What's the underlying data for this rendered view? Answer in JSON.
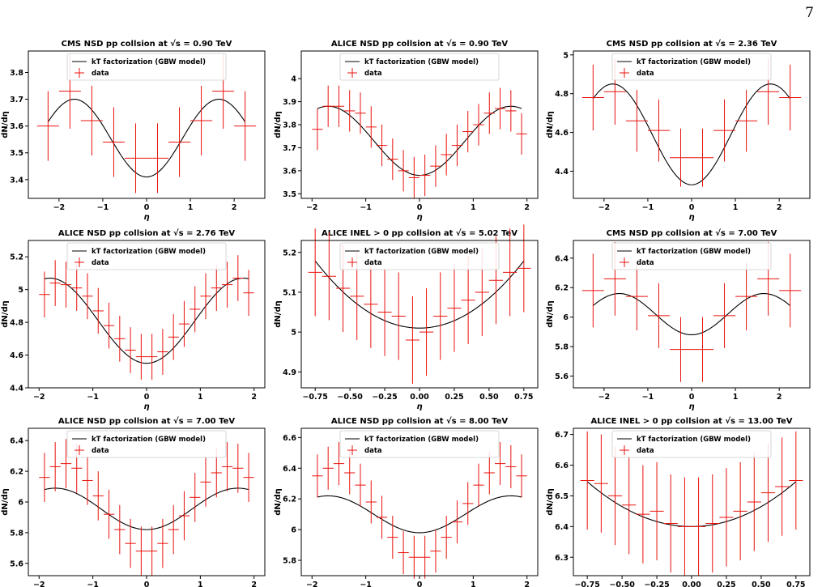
{
  "page_number": "7",
  "chart_data": [
    {
      "type": "line",
      "title": "CMS NSD pp collsion at √s = 0.90 TeV",
      "xlabel": "η",
      "ylabel": "dN/dη",
      "xlim": [
        -2.7,
        2.7
      ],
      "ylim": [
        3.33,
        3.88
      ],
      "xticks": [
        -2,
        -1,
        0,
        1,
        2
      ],
      "yticks": [
        3.4,
        3.5,
        3.6,
        3.7,
        3.8
      ],
      "legend": [
        "kT factorization (GBW model)",
        "data"
      ],
      "legend_position": "upper-center",
      "model": {
        "amp": 0.145,
        "center": 3.555,
        "period": 3.3
      },
      "data": {
        "x": [
          -2.25,
          -1.75,
          -1.25,
          -0.75,
          -0.25,
          0.25,
          0.75,
          1.25,
          1.75,
          2.25
        ],
        "y": [
          3.6,
          3.73,
          3.62,
          3.54,
          3.48,
          3.48,
          3.54,
          3.62,
          3.73,
          3.6
        ],
        "xerr": 0.25,
        "yerr": [
          0.13,
          0.14,
          0.13,
          0.13,
          0.13,
          0.13,
          0.13,
          0.13,
          0.14,
          0.13
        ]
      }
    },
    {
      "type": "line",
      "title": "ALICE NSD pp collsion at √s = 0.90 TeV",
      "xlabel": "η",
      "ylabel": "dN/dη",
      "xlim": [
        -2.2,
        2.2
      ],
      "ylim": [
        3.48,
        4.12
      ],
      "xticks": [
        -2,
        -1,
        0,
        1,
        2
      ],
      "yticks": [
        3.5,
        3.6,
        3.7,
        3.8,
        3.9,
        4.0
      ],
      "legend": [
        "kT factorization (GBW model)",
        "data"
      ],
      "legend_position": "upper-center",
      "model": {
        "amp": 0.15,
        "center": 3.73,
        "period": 3.4
      },
      "data": {
        "x": [
          -1.9,
          -1.7,
          -1.5,
          -1.3,
          -1.1,
          -0.9,
          -0.7,
          -0.5,
          -0.3,
          -0.1,
          0.1,
          0.3,
          0.5,
          0.7,
          0.9,
          1.1,
          1.3,
          1.5,
          1.7,
          1.9
        ],
        "y": [
          3.78,
          3.88,
          3.88,
          3.86,
          3.85,
          3.79,
          3.71,
          3.65,
          3.6,
          3.57,
          3.58,
          3.62,
          3.67,
          3.71,
          3.77,
          3.8,
          3.85,
          3.87,
          3.86,
          3.76
        ],
        "xerr": 0.1,
        "yerr": 0.09
      }
    },
    {
      "type": "line",
      "title": "CMS NSD pp collsion at √s = 2.36 TeV",
      "xlabel": "η",
      "ylabel": "dN/dη",
      "xlim": [
        -2.7,
        2.7
      ],
      "ylim": [
        4.26,
        5.02
      ],
      "xticks": [
        -2,
        -1,
        0,
        1,
        2
      ],
      "yticks": [
        4.4,
        4.6,
        4.8,
        5.0
      ],
      "legend": [
        "kT factorization (GBW model)",
        "data"
      ],
      "legend_position": "upper-center",
      "model": {
        "amp": 0.26,
        "center": 4.59,
        "period": 3.6
      },
      "data": {
        "x": [
          -2.25,
          -1.75,
          -1.25,
          -0.75,
          -0.25,
          0.25,
          0.75,
          1.25,
          1.75,
          2.25
        ],
        "y": [
          4.78,
          4.81,
          4.66,
          4.61,
          4.47,
          4.47,
          4.61,
          4.66,
          4.81,
          4.78
        ],
        "xerr": 0.25,
        "yerr": [
          0.17,
          0.17,
          0.16,
          0.16,
          0.15,
          0.15,
          0.16,
          0.16,
          0.17,
          0.17
        ]
      }
    },
    {
      "type": "line",
      "title": "ALICE NSD pp collsion at √s = 2.76 TeV",
      "xlabel": "η",
      "ylabel": "dN/dη",
      "xlim": [
        -2.2,
        2.2
      ],
      "ylim": [
        4.4,
        5.3
      ],
      "xticks": [
        -2,
        -1,
        0,
        1,
        2
      ],
      "yticks": [
        4.4,
        4.6,
        4.8,
        5.0,
        5.2
      ],
      "legend": [
        "kT factorization (GBW model)",
        "data"
      ],
      "legend_position": "upper-center",
      "model": {
        "amp": 0.26,
        "center": 4.81,
        "period": 3.6
      },
      "data": {
        "x": [
          -1.9,
          -1.7,
          -1.5,
          -1.3,
          -1.1,
          -0.9,
          -0.7,
          -0.5,
          -0.3,
          -0.1,
          0.1,
          0.3,
          0.5,
          0.7,
          0.9,
          1.1,
          1.3,
          1.5,
          1.7,
          1.9
        ],
        "y": [
          4.97,
          5.04,
          5.03,
          5.01,
          4.96,
          4.87,
          4.78,
          4.7,
          4.63,
          4.59,
          4.59,
          4.62,
          4.71,
          4.79,
          4.88,
          4.96,
          5.01,
          5.03,
          5.07,
          4.98
        ],
        "xerr": 0.1,
        "yerr": 0.14
      }
    },
    {
      "type": "line",
      "title": "ALICE INEL > 0 pp collsion at √s = 5.02 TeV",
      "xlabel": "η",
      "ylabel": "dN/dη",
      "xlim": [
        -0.85,
        0.85
      ],
      "ylim": [
        4.86,
        5.23
      ],
      "xticks": [
        -0.75,
        -0.5,
        -0.25,
        0,
        0.25,
        0.5,
        0.75
      ],
      "xtick_labels": [
        "−0.75",
        "−0.50",
        "−0.25",
        "0.00",
        "0.25",
        "0.50",
        "0.75"
      ],
      "yticks": [
        4.9,
        5.0,
        5.1,
        5.2
      ],
      "legend": [
        "kT factorization (GBW model)",
        "data"
      ],
      "legend_position": "upper-center",
      "model": {
        "quad": {
          "a": 0.3,
          "c": 5.01
        }
      },
      "data": {
        "x": [
          -0.75,
          -0.65,
          -0.55,
          -0.45,
          -0.35,
          -0.25,
          -0.15,
          -0.05,
          0.05,
          0.15,
          0.25,
          0.35,
          0.45,
          0.55,
          0.65,
          0.75
        ],
        "y": [
          5.15,
          5.14,
          5.11,
          5.09,
          5.07,
          5.05,
          5.04,
          4.98,
          5.0,
          5.04,
          5.06,
          5.08,
          5.1,
          5.13,
          5.15,
          5.16
        ],
        "xerr": 0.05,
        "yerr": 0.11
      }
    },
    {
      "type": "line",
      "title": "CMS NSD pp collsion at √s = 7.00 TeV",
      "xlabel": "η",
      "ylabel": "dN/dη",
      "xlim": [
        -2.7,
        2.7
      ],
      "ylim": [
        5.52,
        6.52
      ],
      "xticks": [
        -2,
        -1,
        0,
        1,
        2
      ],
      "yticks": [
        5.6,
        5.8,
        6.0,
        6.2,
        6.4
      ],
      "legend": [
        "kT factorization (GBW model)",
        "data"
      ],
      "legend_position": "upper-center",
      "model": {
        "amp": 0.14,
        "center": 6.02,
        "period": 3.3
      },
      "data": {
        "x": [
          -2.25,
          -1.75,
          -1.25,
          -0.75,
          -0.25,
          0.25,
          0.75,
          1.25,
          1.75,
          2.25
        ],
        "y": [
          6.18,
          6.26,
          6.14,
          6.01,
          5.78,
          5.78,
          6.01,
          6.14,
          6.26,
          6.18
        ],
        "xerr": 0.25,
        "yerr": [
          0.25,
          0.25,
          0.23,
          0.22,
          0.22,
          0.22,
          0.22,
          0.23,
          0.25,
          0.25
        ]
      }
    },
    {
      "type": "line",
      "title": "ALICE NSD pp collsion at √s = 7.00 TeV",
      "xlabel": "η",
      "ylabel": "dN/dη",
      "xlim": [
        -2.2,
        2.2
      ],
      "ylim": [
        5.52,
        6.48
      ],
      "xticks": [
        -2,
        -1,
        0,
        1,
        2
      ],
      "yticks": [
        5.6,
        5.8,
        6.0,
        6.2,
        6.4
      ],
      "legend": [
        "kT factorization (GBW model)",
        "data"
      ],
      "legend_position": "upper-center",
      "model": {
        "amp": 0.135,
        "center": 5.955,
        "period": 3.4
      },
      "data": {
        "x": [
          -1.9,
          -1.7,
          -1.5,
          -1.3,
          -1.1,
          -0.9,
          -0.7,
          -0.5,
          -0.3,
          -0.1,
          0.1,
          0.3,
          0.5,
          0.7,
          0.9,
          1.1,
          1.3,
          1.5,
          1.7,
          1.9
        ],
        "y": [
          6.16,
          6.23,
          6.25,
          6.22,
          6.14,
          6.04,
          5.92,
          5.82,
          5.73,
          5.68,
          5.68,
          5.73,
          5.82,
          5.91,
          6.03,
          6.13,
          6.19,
          6.23,
          6.22,
          6.16
        ],
        "xerr": 0.1,
        "yerr": 0.16
      }
    },
    {
      "type": "line",
      "title": "ALICE NSD pp collsion at √s = 8.00 TeV",
      "xlabel": "η",
      "ylabel": "dN/dη",
      "xlim": [
        -2.2,
        2.2
      ],
      "ylim": [
        5.7,
        6.66
      ],
      "xticks": [
        -2,
        -1,
        0,
        1,
        2
      ],
      "yticks": [
        5.8,
        6.0,
        6.2,
        6.4,
        6.6
      ],
      "legend": [
        "kT factorization (GBW model)",
        "data"
      ],
      "legend_position": "upper-center",
      "model": {
        "amp": 0.12,
        "center": 6.1,
        "period": 3.4
      },
      "data": {
        "x": [
          -1.9,
          -1.7,
          -1.5,
          -1.3,
          -1.1,
          -0.9,
          -0.7,
          -0.5,
          -0.3,
          -0.1,
          0.1,
          0.3,
          0.5,
          0.7,
          0.9,
          1.1,
          1.3,
          1.5,
          1.7,
          1.9
        ],
        "y": [
          6.35,
          6.4,
          6.43,
          6.37,
          6.29,
          6.18,
          6.08,
          5.95,
          5.85,
          5.82,
          5.82,
          5.86,
          5.95,
          6.05,
          6.17,
          6.29,
          6.37,
          6.43,
          6.41,
          6.35
        ],
        "xerr": 0.1,
        "yerr": 0.14
      }
    },
    {
      "type": "line",
      "title": "ALICE INEL > 0 pp collsion at √s = 13.00 TeV",
      "xlabel": "η",
      "ylabel": "dN/dη",
      "xlim": [
        -0.85,
        0.85
      ],
      "ylim": [
        6.24,
        6.72
      ],
      "xticks": [
        -0.75,
        -0.5,
        -0.25,
        0,
        0.25,
        0.5,
        0.75
      ],
      "xtick_labels": [
        "−0.75",
        "−0.50",
        "−0.25",
        "0.00",
        "0.25",
        "0.50",
        "0.75"
      ],
      "yticks": [
        6.3,
        6.4,
        6.5,
        6.6,
        6.7
      ],
      "legend": [
        "kT factorization (GBW model)",
        "data"
      ],
      "legend_position": "upper-center",
      "model": {
        "quad": {
          "a": 0.26,
          "c": 6.4
        }
      },
      "data": {
        "x": [
          -0.75,
          -0.65,
          -0.55,
          -0.45,
          -0.35,
          -0.25,
          -0.15,
          -0.05,
          0.05,
          0.15,
          0.25,
          0.35,
          0.45,
          0.55,
          0.65,
          0.75
        ],
        "y": [
          6.55,
          6.54,
          6.5,
          6.47,
          6.44,
          6.45,
          6.41,
          6.4,
          6.4,
          6.41,
          6.43,
          6.45,
          6.48,
          6.51,
          6.53,
          6.55
        ],
        "xerr": 0.05,
        "yerr": 0.16
      }
    }
  ]
}
